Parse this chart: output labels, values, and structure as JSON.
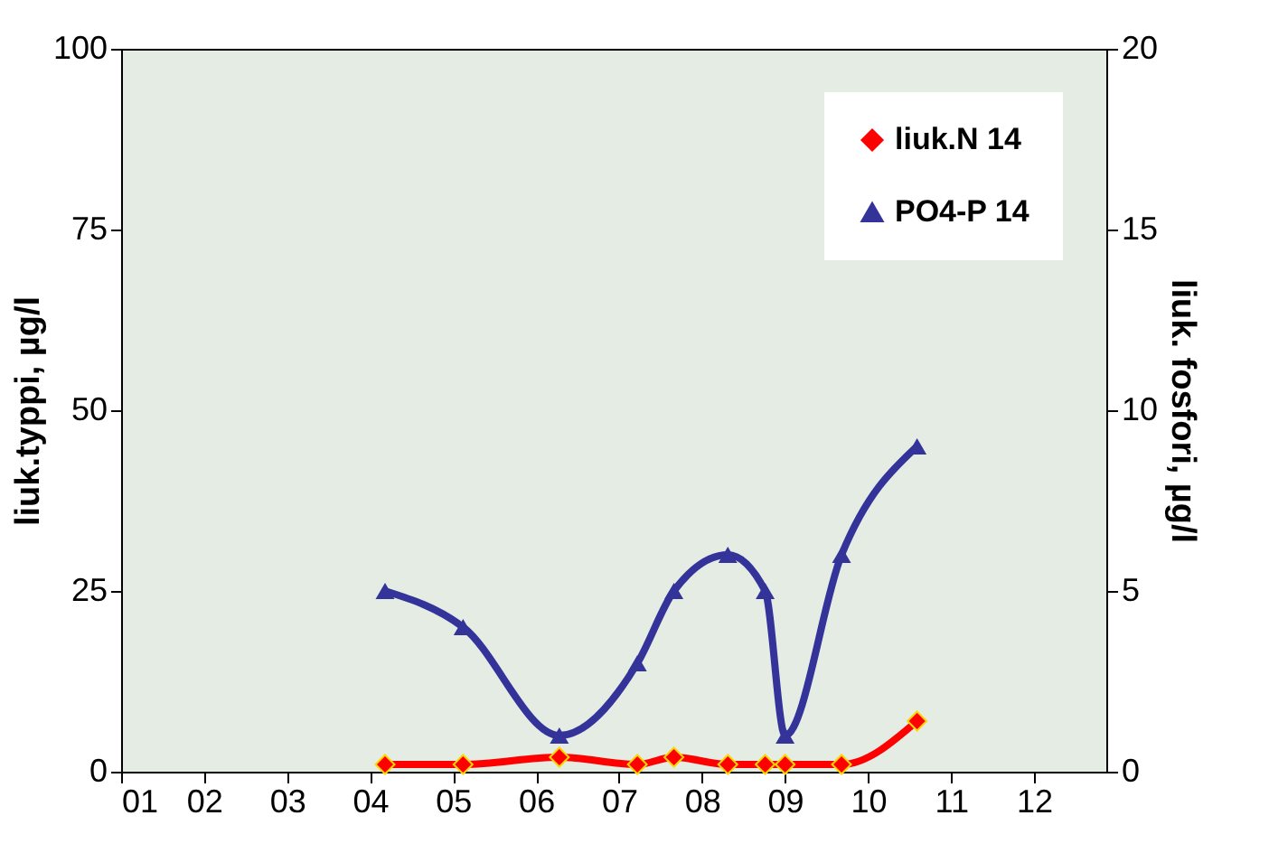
{
  "chart_data": {
    "type": "line",
    "ylabel": "liuk.typpi, µg/l",
    "y2label": "liuk. fosfori, µg/l",
    "x": [
      4.18,
      5.12,
      6.28,
      7.22,
      7.66,
      8.31,
      8.76,
      9.0,
      9.68,
      10.59
    ],
    "series": [
      {
        "name": "liuk.N 14",
        "color": "#ff0000",
        "marker": "diamond",
        "values": [
          1,
          1,
          2,
          1,
          2,
          1,
          1,
          1,
          1,
          7
        ]
      },
      {
        "name": "PO4-P 14",
        "color": "#333399",
        "marker": "triangle",
        "axis": "y2",
        "values": [
          5,
          4,
          1,
          3,
          5,
          6,
          5,
          1,
          6,
          9
        ]
      }
    ],
    "xlim": [
      1,
      12.87
    ],
    "xticks": [
      {
        "value": 1,
        "label": "01"
      },
      {
        "value": 2,
        "label": "02"
      },
      {
        "value": 3,
        "label": "03"
      },
      {
        "value": 4,
        "label": "04"
      },
      {
        "value": 5,
        "label": "05"
      },
      {
        "value": 6,
        "label": "06"
      },
      {
        "value": 7,
        "label": "07"
      },
      {
        "value": 8,
        "label": "08"
      },
      {
        "value": 9,
        "label": "09"
      },
      {
        "value": 10,
        "label": "10"
      },
      {
        "value": 11,
        "label": "11"
      },
      {
        "value": 12,
        "label": "12"
      }
    ],
    "ylim": [
      0,
      100
    ],
    "yticks": [
      0,
      25,
      50,
      75,
      100
    ],
    "y2lim": [
      0,
      20
    ],
    "y2ticks": [
      0,
      5,
      10,
      15,
      20
    ],
    "grid": false,
    "legend": "top right",
    "line_style": "solid"
  }
}
